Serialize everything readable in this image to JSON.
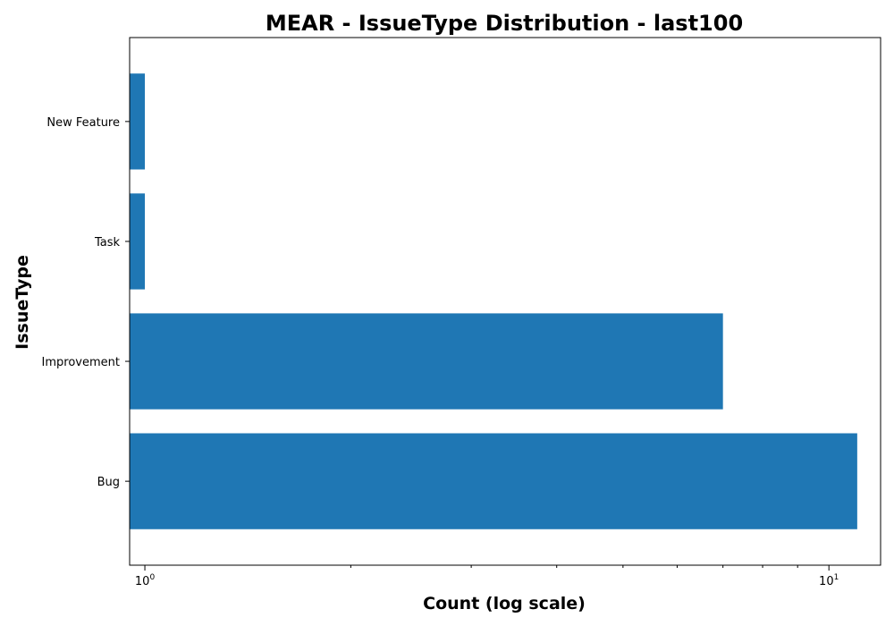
{
  "chart_data": {
    "type": "bar",
    "orientation": "horizontal",
    "title": "MEAR - IssueType Distribution - last100",
    "xlabel": "Count (log scale)",
    "ylabel": "IssueType",
    "xscale": "log",
    "xlim": [
      0.95,
      11.9
    ],
    "major_ticks": [
      {
        "value": 1,
        "base": "10",
        "exponent": "0"
      },
      {
        "value": 10,
        "base": "10",
        "exponent": "1"
      }
    ],
    "minor_ticks": [
      2,
      3,
      4,
      5,
      6,
      7,
      8,
      9
    ],
    "categories": [
      "Bug",
      "Improvement",
      "Task",
      "New Feature"
    ],
    "values": [
      11,
      7,
      1,
      1
    ],
    "grid": false,
    "colors": {
      "bar": "#1f77b4",
      "axis": "#000000",
      "background": "#ffffff"
    }
  }
}
